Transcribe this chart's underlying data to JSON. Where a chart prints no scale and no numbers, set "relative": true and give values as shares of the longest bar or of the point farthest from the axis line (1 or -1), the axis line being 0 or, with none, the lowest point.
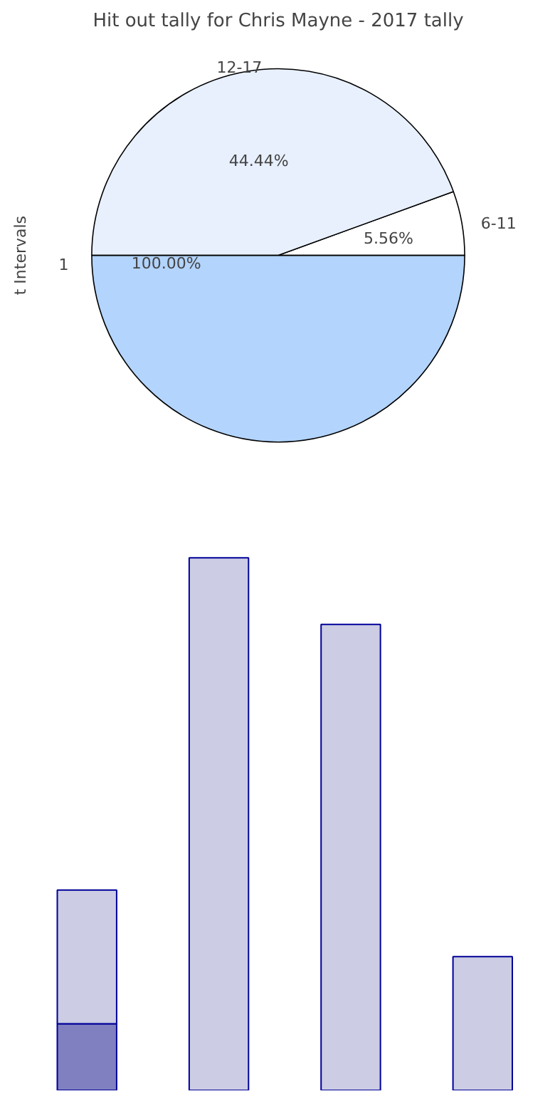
{
  "chart_data": [
    {
      "type": "pie",
      "title": "Hit out tally for Chris Mayne - 2017 tally",
      "ylabel": "t Intervals",
      "categories": [
        "6-11",
        "12-17",
        null
      ],
      "values": [
        5.56,
        44.44,
        50
      ],
      "colors": [
        "#ffffff",
        "#e8f0fe",
        "#b3d4fc"
      ],
      "value_labels": [
        "5.56%",
        "44.44%",
        null
      ],
      "annotations": [
        "1",
        "100.00%"
      ]
    },
    {
      "type": "bar",
      "stacked": true,
      "relative": true,
      "categories": [
        null,
        null,
        null,
        null
      ],
      "series": [
        {
          "color": "#8080c0",
          "values": [
            0.125,
            0,
            0,
            0
          ]
        },
        {
          "color": "#cccce5",
          "values": [
            0.251,
            1,
            0.875,
            0.251
          ]
        }
      ]
    }
  ]
}
